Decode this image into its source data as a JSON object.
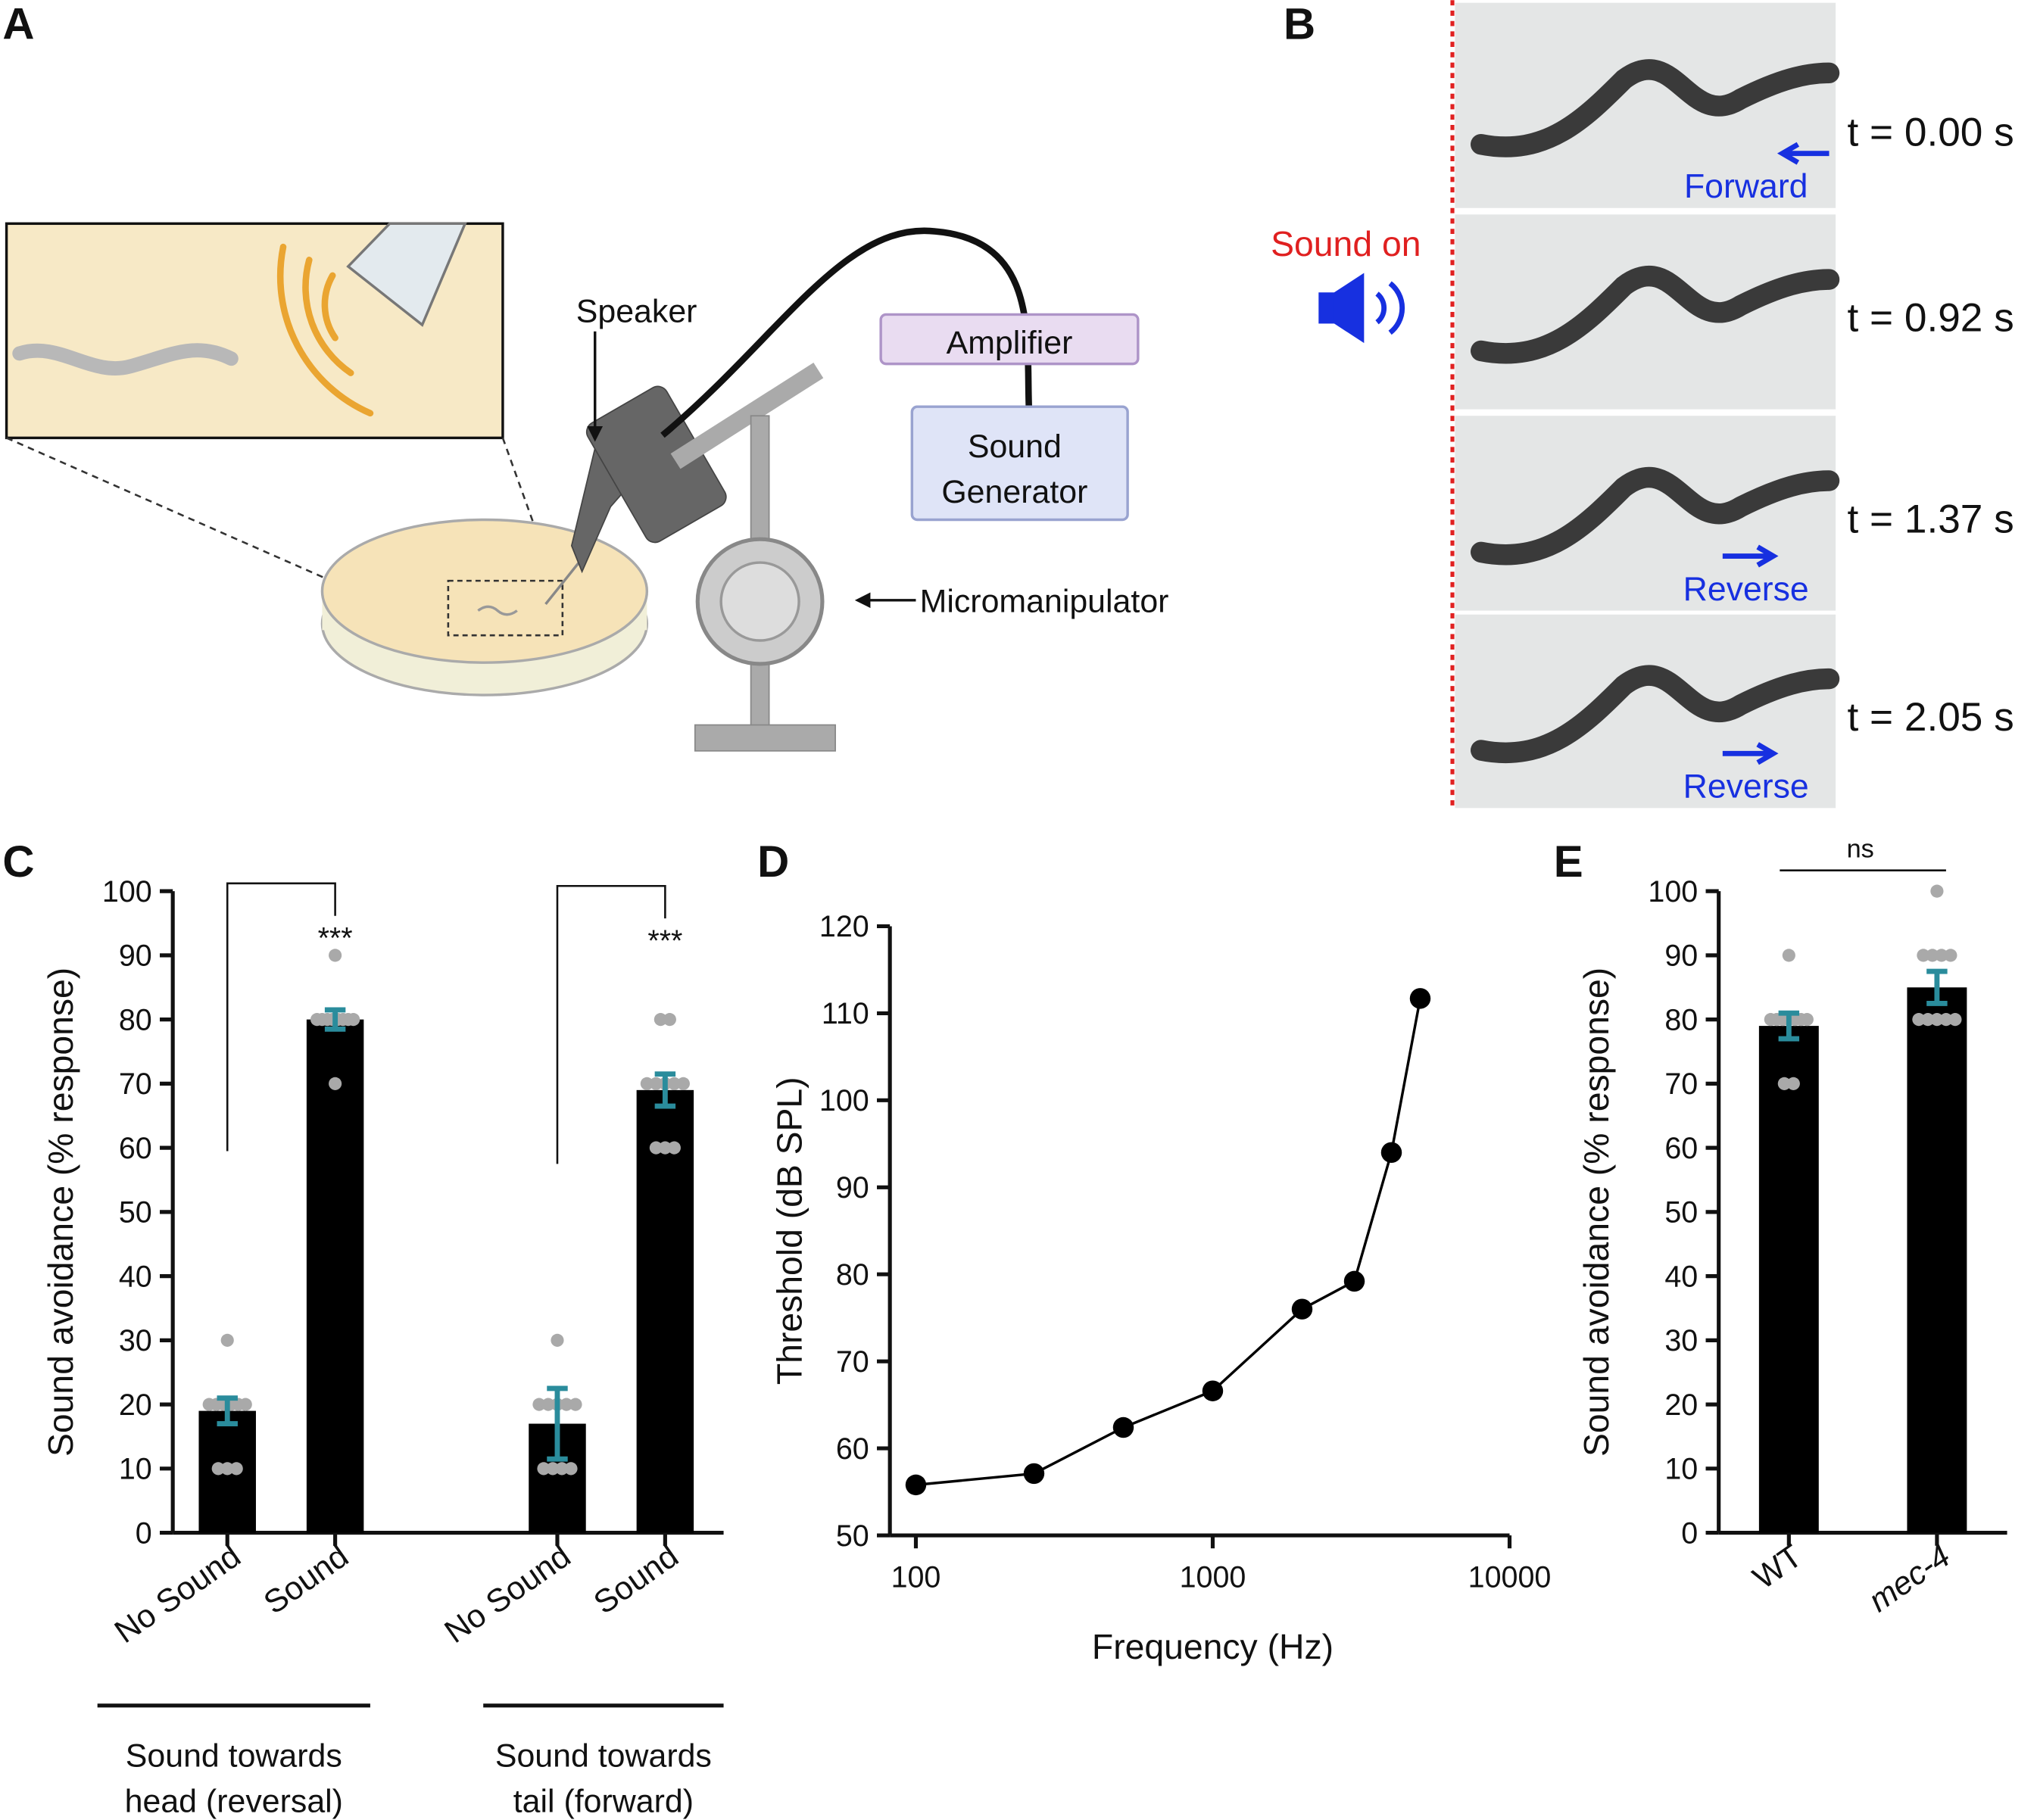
{
  "panel_labels": [
    "A",
    "B",
    "C",
    "D",
    "E"
  ],
  "diagram": {
    "speaker": "Speaker",
    "amplifier": "Amplifier",
    "sound_generator": [
      "Sound",
      "Generator"
    ],
    "micromanipulator": "Micromanipulator"
  },
  "frames": {
    "sound_on": "Sound on",
    "items": [
      {
        "time": "t = 0.00 s",
        "direction": "Forward"
      },
      {
        "time": "t = 0.92 s"
      },
      {
        "time": "t = 1.37 s",
        "direction": "Reverse"
      },
      {
        "time": "t = 2.05 s",
        "direction": "Reverse"
      }
    ]
  },
  "chart_data": [
    {
      "type": "bar",
      "ylabel": "Sound avoidance (% response)",
      "categories": [
        "No Sound",
        "Sound",
        "No Sound",
        "Sound"
      ],
      "groups": [
        [
          "Sound towards",
          "head (reversal)"
        ],
        [
          "Sound towards",
          "tail (forward)"
        ]
      ],
      "values": [
        19,
        80,
        17,
        69
      ],
      "errors": [
        2,
        1.5,
        5.5,
        2.5
      ],
      "points": [
        [
          30,
          20,
          20,
          20,
          10,
          10,
          10,
          20,
          20,
          20
        ],
        [
          90,
          80,
          80,
          80,
          80,
          80,
          70,
          80,
          80,
          80
        ],
        [
          30,
          20,
          20,
          10,
          10,
          10,
          20,
          20,
          10,
          20
        ],
        [
          80,
          80,
          70,
          70,
          70,
          60,
          60,
          60,
          70,
          70
        ]
      ],
      "annotations": [
        "***",
        "***"
      ],
      "color": "#000000",
      "error_color": "#2a8c9c",
      "point_color": "#a9a9a9",
      "ylim": [
        0,
        100
      ],
      "yticks": [
        0,
        10,
        20,
        30,
        40,
        50,
        60,
        70,
        80,
        90,
        100
      ]
    },
    {
      "type": "line",
      "xlabel": "Frequency (Hz)",
      "ylabel": "Threshold (dB SPL)",
      "x": [
        100,
        250,
        500,
        1000,
        2000,
        3000,
        4000,
        5000
      ],
      "values": [
        55.8,
        57.1,
        62.4,
        66.6,
        76,
        79.2,
        94,
        111.7
      ],
      "color": "#000000",
      "xscale": "log",
      "xlim": [
        100,
        10000
      ],
      "xticks": [
        100,
        1000,
        10000
      ],
      "ylim": [
        50,
        120
      ],
      "yticks": [
        50,
        60,
        70,
        80,
        90,
        100,
        110,
        120
      ]
    },
    {
      "type": "bar",
      "ylabel": "Sound avoidance (% response)",
      "categories": [
        "WT",
        "mec-4"
      ],
      "italic": [
        false,
        true
      ],
      "values": [
        79,
        85
      ],
      "errors": [
        2,
        2.5
      ],
      "points": [
        [
          90,
          80,
          80,
          80,
          70,
          80,
          80,
          70,
          80,
          80
        ],
        [
          100,
          90,
          90,
          90,
          80,
          80,
          80,
          80,
          90,
          80
        ]
      ],
      "annotations": [
        "ns"
      ],
      "color": "#000000",
      "error_color": "#2a8c9c",
      "point_color": "#a9a9a9",
      "ylim": [
        0,
        100
      ],
      "yticks": [
        0,
        10,
        20,
        30,
        40,
        50,
        60,
        70,
        80,
        90,
        100
      ]
    }
  ]
}
